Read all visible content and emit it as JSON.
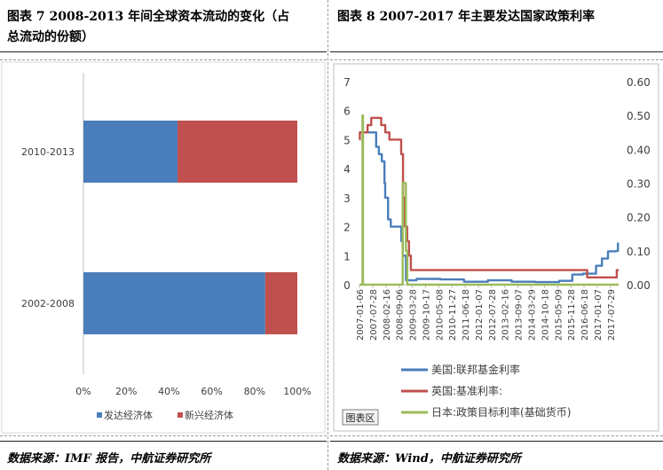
{
  "left": {
    "title": "图表 7 2008-2013 年间全球资本流动的变化（占总流动的份额）",
    "title_line1": "图表 7 2008-2013 年间全球资本流动的变化（占",
    "title_line2": "总流动的份额）",
    "source": "数据来源：IMF 报告，中航证券研究所"
  },
  "right": {
    "title": "图表 8 2007-2017 年主要发达国家政策利率",
    "source": "数据来源：Wind，中航证券研究所"
  },
  "chart_data": [
    {
      "type": "bar",
      "orientation": "horizontal",
      "stacked": true,
      "categories": [
        "2010-2013",
        "2002-2008"
      ],
      "series": [
        {
          "name": "发达经济体",
          "color": "#4a7ebb",
          "values": [
            0.44,
            0.85
          ]
        },
        {
          "name": "新兴经济体",
          "color": "#c0504d",
          "values": [
            0.56,
            0.15
          ]
        }
      ],
      "x_ticks": [
        "0%",
        "20%",
        "40%",
        "60%",
        "80%",
        "100%"
      ],
      "xlim": [
        0,
        1
      ],
      "legend": "bottom"
    },
    {
      "type": "line",
      "x_tick_labels": [
        "2007-01-06",
        "2007-07-28",
        "2008-02-16",
        "2008-09-06",
        "2009-03-28",
        "2009-10-17",
        "2010-05-08",
        "2010-11-27",
        "2011-06-18",
        "2012-01-07",
        "2012-07-28",
        "2013-02-16",
        "2013-09-07",
        "2014-03-29",
        "2014-10-18",
        "2015-05-09",
        "2015-11-28",
        "2016-06-18",
        "2017-01-07",
        "2017-07-29"
      ],
      "left_ticks": [
        "0",
        "1",
        "2",
        "3",
        "4",
        "5",
        "6",
        "7"
      ],
      "right_ticks": [
        "0.00",
        "0.10",
        "0.20",
        "0.30",
        "0.40",
        "0.50",
        "0.60"
      ],
      "left_ylim": [
        0,
        7
      ],
      "right_ylim": [
        0,
        0.6
      ],
      "legend_label": "图表区",
      "series": [
        {
          "name": "美国:联邦基金利率",
          "axis": "left",
          "color": "#4a7ebb",
          "points": [
            [
              "2007-01-06",
              5.25
            ],
            [
              "2007-08-01",
              5.25
            ],
            [
              "2007-09-20",
              4.75
            ],
            [
              "2007-11-01",
              4.5
            ],
            [
              "2007-12-15",
              4.25
            ],
            [
              "2008-01-25",
              3.5
            ],
            [
              "2008-02-05",
              3.0
            ],
            [
              "2008-03-20",
              2.25
            ],
            [
              "2008-05-01",
              2.0
            ],
            [
              "2008-10-10",
              1.5
            ],
            [
              "2008-11-01",
              1.0
            ],
            [
              "2008-12-20",
              0.15
            ],
            [
              "2009-06-01",
              0.2
            ],
            [
              "2010-06-01",
              0.18
            ],
            [
              "2011-06-01",
              0.1
            ],
            [
              "2012-06-01",
              0.15
            ],
            [
              "2013-06-01",
              0.1
            ],
            [
              "2014-06-01",
              0.09
            ],
            [
              "2015-06-01",
              0.13
            ],
            [
              "2015-12-20",
              0.35
            ],
            [
              "2016-06-01",
              0.38
            ],
            [
              "2016-12-20",
              0.65
            ],
            [
              "2017-03-20",
              0.9
            ],
            [
              "2017-06-20",
              1.15
            ],
            [
              "2017-10-20",
              1.16
            ],
            [
              "2017-11-20",
              1.45
            ]
          ]
        },
        {
          "name": "英国:基准利率:",
          "axis": "left",
          "color": "#c0504d",
          "points": [
            [
              "2007-01-06",
              5.0
            ],
            [
              "2007-01-12",
              5.25
            ],
            [
              "2007-05-10",
              5.5
            ],
            [
              "2007-07-06",
              5.75
            ],
            [
              "2007-12-06",
              5.5
            ],
            [
              "2008-02-07",
              5.25
            ],
            [
              "2008-04-10",
              5.0
            ],
            [
              "2008-10-08",
              4.5
            ],
            [
              "2008-11-06",
              3.0
            ],
            [
              "2008-12-04",
              2.0
            ],
            [
              "2009-01-08",
              1.5
            ],
            [
              "2009-02-05",
              1.0
            ],
            [
              "2009-03-05",
              0.5
            ],
            [
              "2016-08-04",
              0.5
            ],
            [
              "2016-08-05",
              0.25
            ],
            [
              "2017-11-02",
              0.25
            ],
            [
              "2017-11-03",
              0.5
            ],
            [
              "2017-12-01",
              0.5
            ]
          ]
        },
        {
          "name": "日本:政策目标利率(基础货币)",
          "axis": "right",
          "color": "#9bbb59",
          "points": [
            [
              "2007-01-06",
              0.0
            ],
            [
              "2007-02-21",
              0.0
            ],
            [
              "2007-02-21",
              0.5
            ],
            [
              "2007-03-01",
              0.5
            ],
            [
              "2007-03-01",
              0.0
            ],
            [
              "2008-10-31",
              0.0
            ],
            [
              "2008-10-31",
              0.3
            ],
            [
              "2008-12-19",
              0.3
            ],
            [
              "2008-12-19",
              0.1
            ],
            [
              "2009-01-10",
              0.1
            ],
            [
              "2009-01-10",
              0.0
            ],
            [
              "2017-12-01",
              0.0
            ]
          ]
        }
      ]
    }
  ]
}
